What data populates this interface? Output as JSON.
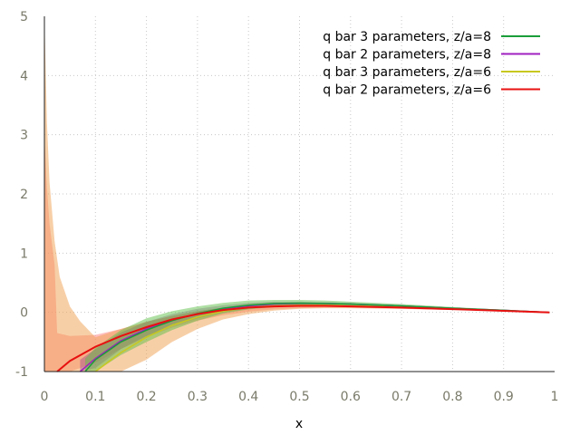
{
  "chart_data": {
    "type": "area",
    "title": "",
    "xlabel": "x",
    "ylabel": "",
    "xlim": [
      0,
      1
    ],
    "ylim": [
      -1,
      5
    ],
    "xticks": [
      "0",
      "0.1",
      "0.2",
      "0.3",
      "0.4",
      "0.5",
      "0.6",
      "0.7",
      "0.8",
      "0.9",
      "1"
    ],
    "yticks": [
      "-1",
      "0",
      "1",
      "2",
      "3",
      "4",
      "5"
    ],
    "grid": true,
    "legend_position": "top-right",
    "series": [
      {
        "name": "q bar 3 parameters, z/a=8",
        "color": "#1a9e3a",
        "band_color": "#5fbf4a",
        "x": [
          0.08,
          0.1,
          0.15,
          0.2,
          0.25,
          0.3,
          0.35,
          0.4,
          0.45,
          0.5,
          0.55,
          0.6,
          0.7,
          0.8,
          0.9,
          0.99
        ],
        "y": [
          -1.0,
          -0.8,
          -0.5,
          -0.3,
          -0.14,
          -0.02,
          0.07,
          0.12,
          0.15,
          0.155,
          0.15,
          0.14,
          0.11,
          0.07,
          0.035,
          0.0
        ],
        "band_upper": [
          -0.78,
          -0.6,
          -0.3,
          -0.1,
          0.02,
          0.1,
          0.16,
          0.2,
          0.21,
          0.21,
          0.2,
          0.18,
          0.14,
          0.09,
          0.045,
          0.0
        ],
        "band_lower": [
          -1.0,
          -1.0,
          -0.72,
          -0.5,
          -0.3,
          -0.14,
          -0.02,
          0.05,
          0.09,
          0.1,
          0.1,
          0.1,
          0.08,
          0.05,
          0.025,
          0.0
        ]
      },
      {
        "name": "q bar 2 parameters, z/a=8",
        "color": "#a020c0",
        "band_color": "#8a2a8a",
        "x": [
          0.07,
          0.1,
          0.15,
          0.2,
          0.25,
          0.3,
          0.35,
          0.4,
          0.45,
          0.5,
          0.55,
          0.6,
          0.7,
          0.8,
          0.9,
          0.99
        ],
        "y": [
          -1.0,
          -0.78,
          -0.48,
          -0.28,
          -0.13,
          -0.02,
          0.06,
          0.11,
          0.14,
          0.15,
          0.15,
          0.14,
          0.11,
          0.07,
          0.035,
          0.0
        ],
        "band_upper": [
          -0.8,
          -0.62,
          -0.34,
          -0.16,
          -0.03,
          0.06,
          0.12,
          0.16,
          0.18,
          0.18,
          0.17,
          0.16,
          0.12,
          0.08,
          0.04,
          0.0
        ],
        "band_lower": [
          -1.0,
          -0.94,
          -0.62,
          -0.4,
          -0.23,
          -0.1,
          0.0,
          0.06,
          0.1,
          0.12,
          0.12,
          0.12,
          0.1,
          0.06,
          0.03,
          0.0
        ]
      },
      {
        "name": "q bar 3 parameters, z/a=6",
        "color": "#c8c820",
        "band_color": "#f0a050",
        "x": [
          0.1,
          0.15,
          0.2,
          0.25,
          0.3,
          0.35,
          0.4,
          0.45,
          0.5,
          0.55,
          0.6,
          0.7,
          0.8,
          0.9,
          0.99
        ],
        "y": [
          -1.0,
          -0.68,
          -0.42,
          -0.22,
          -0.08,
          0.02,
          0.08,
          0.11,
          0.12,
          0.12,
          0.11,
          0.09,
          0.06,
          0.03,
          0.0
        ],
        "band_upper": [
          -0.42,
          -0.28,
          -0.16,
          -0.06,
          0.02,
          0.08,
          0.12,
          0.14,
          0.15,
          0.15,
          0.14,
          0.11,
          0.07,
          0.035,
          0.0
        ],
        "band_lower": [
          -1.0,
          -1.0,
          -0.8,
          -0.5,
          -0.28,
          -0.12,
          -0.03,
          0.03,
          0.06,
          0.07,
          0.07,
          0.06,
          0.04,
          0.02,
          0.0
        ],
        "band_upper_extended": {
          "x": [
            0.0,
            0.005,
            0.01,
            0.02,
            0.03,
            0.05,
            0.07,
            0.1
          ],
          "y": [
            5.0,
            3.2,
            2.2,
            1.2,
            0.6,
            0.1,
            -0.15,
            -0.42
          ]
        }
      },
      {
        "name": "q bar 2 parameters, z/a=6",
        "color": "#e81010",
        "band_color": "#ff8080",
        "x": [
          0.025,
          0.05,
          0.1,
          0.15,
          0.2,
          0.25,
          0.3,
          0.35,
          0.4,
          0.45,
          0.5,
          0.55,
          0.6,
          0.7,
          0.8,
          0.9,
          0.99
        ],
        "y": [
          -1.0,
          -0.82,
          -0.58,
          -0.4,
          -0.25,
          -0.12,
          -0.03,
          0.04,
          0.08,
          0.1,
          0.11,
          0.11,
          0.1,
          0.08,
          0.055,
          0.025,
          0.0
        ],
        "band_upper": [
          -0.35,
          -0.4,
          -0.38,
          -0.28,
          -0.16,
          -0.06,
          0.02,
          0.08,
          0.11,
          0.13,
          0.14,
          0.13,
          0.12,
          0.09,
          0.06,
          0.03,
          0.0
        ],
        "band_lower": [
          -1.0,
          -1.0,
          -0.85,
          -0.62,
          -0.42,
          -0.26,
          -0.14,
          -0.05,
          0.01,
          0.05,
          0.07,
          0.08,
          0.08,
          0.06,
          0.04,
          0.02,
          0.0
        ],
        "band_upper_extended": {
          "x": [
            0.0,
            0.005,
            0.01,
            0.02,
            0.03,
            0.05,
            0.08,
            0.1,
            0.15
          ],
          "y": [
            3.0,
            2.1,
            1.5,
            0.8,
            0.35,
            0.0,
            -0.12,
            -0.12,
            -0.12
          ]
        }
      }
    ]
  }
}
